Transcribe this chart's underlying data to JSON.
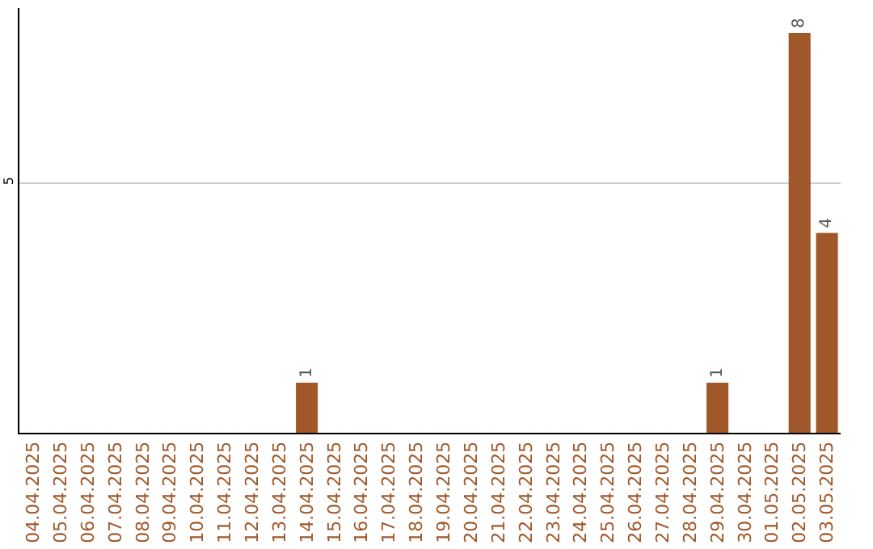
{
  "chart_data": {
    "type": "bar",
    "categories": [
      "04.04.2025",
      "05.04.2025",
      "06.04.2025",
      "07.04.2025",
      "08.04.2025",
      "09.04.2025",
      "10.04.2025",
      "11.04.2025",
      "12.04.2025",
      "13.04.2025",
      "14.04.2025",
      "15.04.2025",
      "16.04.2025",
      "17.04.2025",
      "18.04.2025",
      "19.04.2025",
      "20.04.2025",
      "21.04.2025",
      "22.04.2025",
      "23.04.2025",
      "24.04.2025",
      "25.04.2025",
      "26.04.2025",
      "27.04.2025",
      "28.04.2025",
      "29.04.2025",
      "30.04.2025",
      "01.05.2025",
      "02.05.2025",
      "03.05.2025"
    ],
    "values": [
      0,
      0,
      0,
      0,
      0,
      0,
      0,
      0,
      0,
      0,
      1,
      0,
      0,
      0,
      0,
      0,
      0,
      0,
      0,
      0,
      0,
      0,
      0,
      0,
      0,
      1,
      0,
      0,
      8,
      4
    ],
    "value_labels": [
      null,
      null,
      null,
      null,
      null,
      null,
      null,
      null,
      null,
      null,
      "1",
      null,
      null,
      null,
      null,
      null,
      null,
      null,
      null,
      null,
      null,
      null,
      null,
      null,
      null,
      "1",
      null,
      null,
      "8",
      "4"
    ],
    "color": "#a0582a",
    "ylim": [
      0,
      8.5
    ],
    "yticks": [
      5
    ],
    "grid": "y",
    "legend": false
  }
}
